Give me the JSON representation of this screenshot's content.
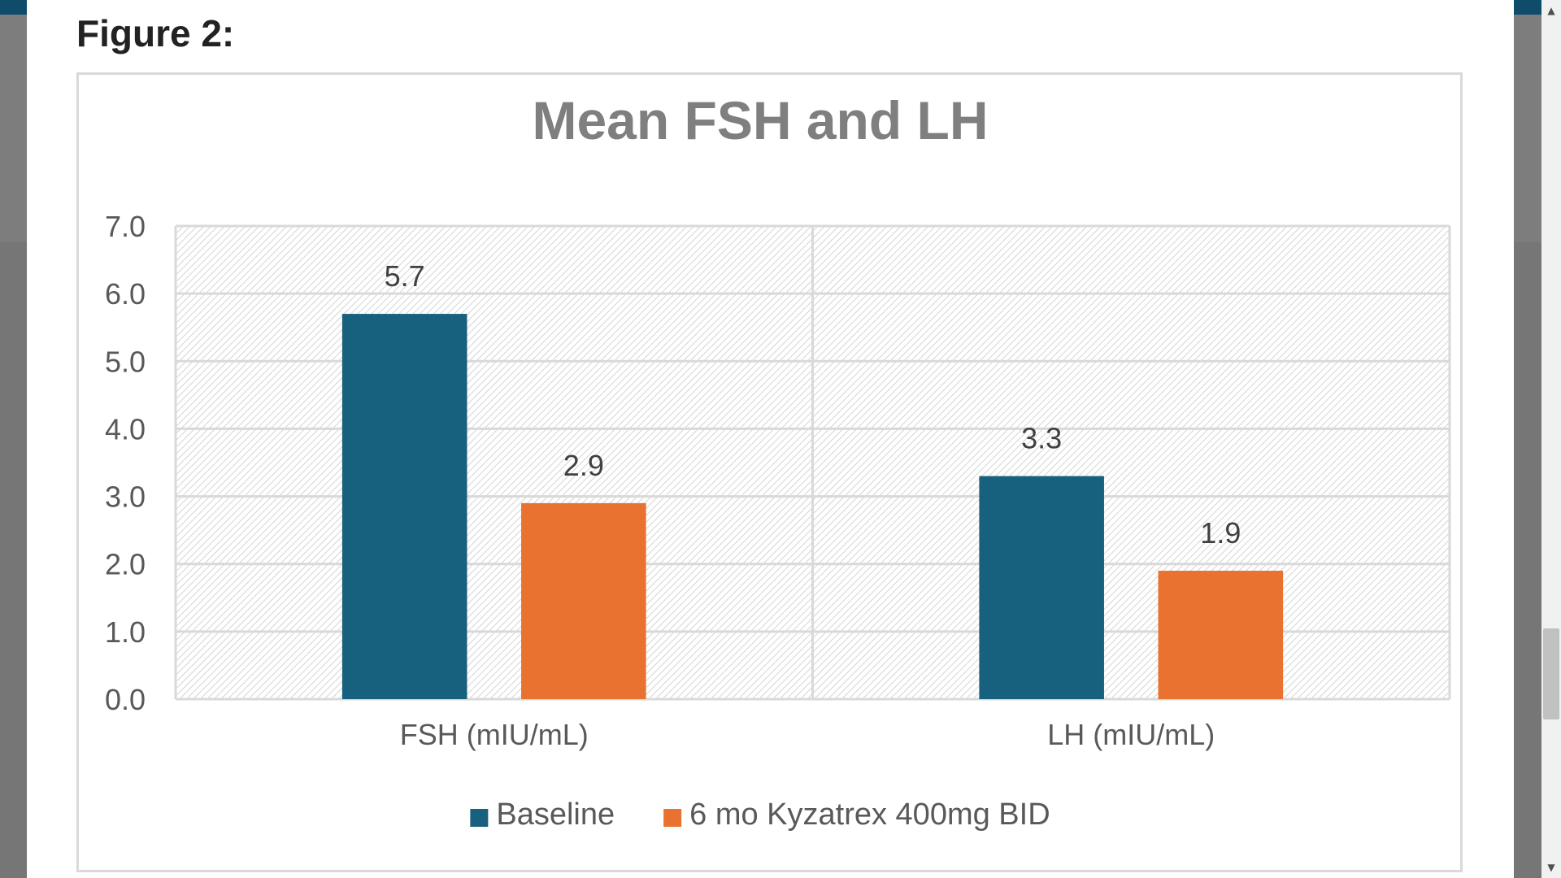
{
  "page": {
    "figure_label": "Figure 2:"
  },
  "scrollbar": {
    "up_icon": "scroll-up-arrow",
    "down_icon": "scroll-down-arrow"
  },
  "chart_data": {
    "type": "bar",
    "title": "Mean FSH and LH",
    "xlabel": "",
    "ylabel": "",
    "categories": [
      "FSH (mIU/mL)",
      "LH (mIU/mL)"
    ],
    "series": [
      {
        "name": "Baseline",
        "values": [
          5.7,
          3.3
        ],
        "labels": [
          "5.7",
          "3.3"
        ],
        "color": "#17607e"
      },
      {
        "name": "6 mo Kyzatrex 400mg BID",
        "values": [
          2.9,
          1.9
        ],
        "labels": [
          "2.9",
          "1.9"
        ],
        "color": "#e97230"
      }
    ],
    "ylim": [
      0,
      7
    ],
    "yticks": [
      "0.0",
      "1.0",
      "2.0",
      "3.0",
      "4.0",
      "5.0",
      "6.0",
      "7.0"
    ],
    "grid": true,
    "legend": "bottom",
    "plot_background": "hatched"
  }
}
